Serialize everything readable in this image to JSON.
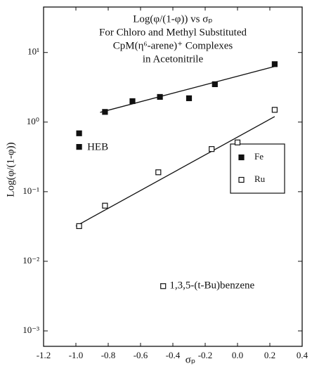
{
  "chart_data": {
    "type": "scatter",
    "title_lines": [
      "Log(φ/(1-φ)) vs σₚ",
      "For Chloro and Methyl Substituted",
      "CpM(η⁶-arene)⁺ Complexes",
      "in Acetonitrile"
    ],
    "x_label": "σₚ",
    "y_label": "Log(φ/(1-φ))",
    "xlim": [
      -1.2,
      0.4
    ],
    "xticks": [
      {
        "value": -1.2,
        "label": "-1.2"
      },
      {
        "value": -1.0,
        "label": "-1.0"
      },
      {
        "value": -0.8,
        "label": "-0.8"
      },
      {
        "value": -0.6,
        "label": "-0.6"
      },
      {
        "value": -0.4,
        "label": "-0.4"
      },
      {
        "value": -0.2,
        "label": "-0.2"
      },
      {
        "value": 0.0,
        "label": "0.0"
      },
      {
        "value": 0.2,
        "label": "0.2"
      },
      {
        "value": 0.4,
        "label": "0.4"
      }
    ],
    "ylim": [
      0.0006,
      45
    ],
    "log_y": true,
    "yticks": [
      {
        "value": 10,
        "label": "10¹"
      },
      {
        "value": 1,
        "label": "10⁰"
      },
      {
        "value": 0.1,
        "label": "10⁻¹"
      },
      {
        "value": 0.01,
        "label": "10⁻²"
      },
      {
        "value": 0.001,
        "label": "10⁻³"
      }
    ],
    "series": [
      {
        "name": "Fe",
        "filled": true,
        "color": "#111111",
        "x": [
          -0.98,
          -0.98,
          -0.82,
          -0.65,
          -0.48,
          -0.3,
          -0.14,
          0.23
        ],
        "values": [
          0.69,
          0.44,
          1.4,
          2.0,
          2.3,
          2.2,
          3.5,
          6.8
        ]
      },
      {
        "name": "Ru",
        "filled": false,
        "color": "#111111",
        "x": [
          -0.98,
          -0.82,
          -0.49,
          -0.16,
          0.0,
          0.23,
          -0.46
        ],
        "values": [
          0.032,
          0.063,
          0.19,
          0.41,
          0.51,
          1.5,
          0.0044
        ]
      }
    ],
    "fit_lines": [
      {
        "x": [
          -0.85,
          0.23
        ],
        "values": [
          1.38,
          6.3
        ]
      },
      {
        "x": [
          -1.0,
          0.23
        ],
        "values": [
          0.032,
          1.2
        ]
      }
    ],
    "annotations": [
      {
        "text": "HEB",
        "x": -0.93,
        "y": 0.43
      },
      {
        "text": "1,3,5-(t-Bu)benzene",
        "x": -0.42,
        "y": 0.0044
      }
    ]
  }
}
